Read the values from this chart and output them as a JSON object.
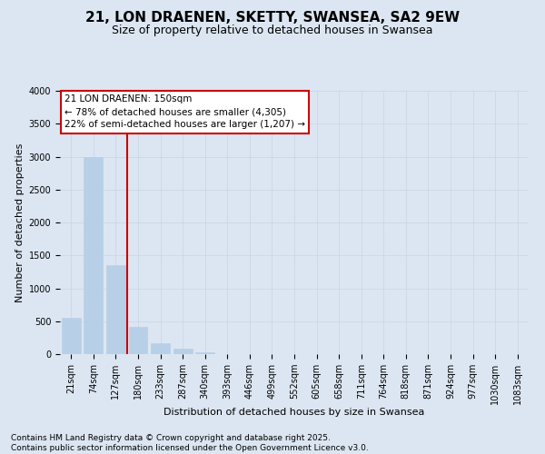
{
  "title": "21, LON DRAENEN, SKETTY, SWANSEA, SA2 9EW",
  "subtitle": "Size of property relative to detached houses in Swansea",
  "xlabel": "Distribution of detached houses by size in Swansea",
  "ylabel": "Number of detached properties",
  "categories": [
    "21sqm",
    "74sqm",
    "127sqm",
    "180sqm",
    "233sqm",
    "287sqm",
    "340sqm",
    "393sqm",
    "446sqm",
    "499sqm",
    "552sqm",
    "605sqm",
    "658sqm",
    "711sqm",
    "764sqm",
    "818sqm",
    "871sqm",
    "924sqm",
    "977sqm",
    "1030sqm",
    "1083sqm"
  ],
  "values": [
    550,
    3000,
    1350,
    420,
    170,
    80,
    30,
    5,
    2,
    0,
    0,
    0,
    0,
    0,
    0,
    0,
    0,
    0,
    0,
    0,
    0
  ],
  "bar_color": "#b8cfe8",
  "bar_edgecolor": "#b8cfe8",
  "grid_color": "#c8d4e4",
  "background_color": "#dce6f2",
  "vline_x_index": 2,
  "vline_color": "#cc0000",
  "annotation_text": "21 LON DRAENEN: 150sqm\n← 78% of detached houses are smaller (4,305)\n22% of semi-detached houses are larger (1,207) →",
  "annotation_box_edgecolor": "#cc0000",
  "annotation_box_facecolor": "#ffffff",
  "ylim": [
    0,
    4000
  ],
  "yticks": [
    0,
    500,
    1000,
    1500,
    2000,
    2500,
    3000,
    3500,
    4000
  ],
  "footer": "Contains HM Land Registry data © Crown copyright and database right 2025.\nContains public sector information licensed under the Open Government Licence v3.0.",
  "title_fontsize": 11,
  "subtitle_fontsize": 9,
  "axis_label_fontsize": 8,
  "tick_fontsize": 7,
  "footer_fontsize": 6.5,
  "annotation_fontsize": 7.5
}
